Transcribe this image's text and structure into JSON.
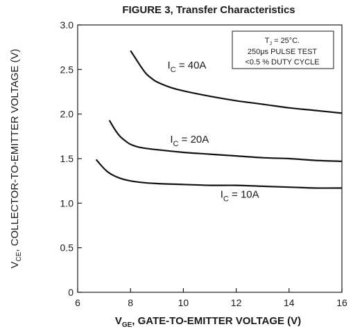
{
  "chart_data": {
    "type": "line",
    "title": "FIGURE 3,  Transfer  Characteristics",
    "xlabel": {
      "main": "V",
      "sub": "GE",
      "rest": ", GATE-TO-EMITTER VOLTAGE (V)"
    },
    "ylabel": {
      "main": "V",
      "sub": "CE",
      "rest": ", COLLECTOR-TO-EMITTER  VOLTAGE (V)"
    },
    "xlim": [
      6,
      16
    ],
    "ylim": [
      0,
      3.0
    ],
    "x_ticks": [
      6,
      8,
      10,
      12,
      14,
      16
    ],
    "x_tick_labels": [
      "6",
      "8",
      "10",
      "12",
      "14",
      "16"
    ],
    "y_ticks": [
      0,
      0.5,
      1.0,
      1.5,
      2.0,
      2.5,
      3.0
    ],
    "y_tick_labels": [
      "0",
      "0.5",
      "1.0",
      "1.5",
      "2.0",
      "2.5",
      "3.0"
    ],
    "grid": false,
    "annotation": {
      "line1_main": "T",
      "line1_sub": "J",
      "line1_rest": " = 25°C.",
      "line2": "250μs PULSE TEST",
      "line3": "<0.5 % DUTY CYCLE"
    },
    "series": [
      {
        "label_main": "I",
        "label_sub": "C",
        "label_rest": " = 40A",
        "x": [
          8.0,
          8.2,
          8.4,
          8.6,
          8.8,
          9.0,
          9.5,
          10.0,
          11.0,
          12.0,
          13.0,
          14.0,
          15.0,
          16.0
        ],
        "y": [
          2.71,
          2.62,
          2.53,
          2.45,
          2.4,
          2.36,
          2.3,
          2.26,
          2.2,
          2.15,
          2.11,
          2.07,
          2.04,
          2.01
        ]
      },
      {
        "label_main": "I",
        "label_sub": "C",
        "label_rest": " = 20A",
        "x": [
          7.2,
          7.4,
          7.6,
          7.8,
          8.0,
          8.3,
          8.7,
          9.0,
          10.0,
          11.0,
          12.0,
          13.0,
          14.0,
          15.0,
          16.0
        ],
        "y": [
          1.93,
          1.83,
          1.75,
          1.7,
          1.66,
          1.63,
          1.61,
          1.6,
          1.57,
          1.55,
          1.53,
          1.51,
          1.5,
          1.48,
          1.47
        ]
      },
      {
        "label_main": "I",
        "label_sub": "C",
        "label_rest": " = 10A",
        "x": [
          6.7,
          6.9,
          7.1,
          7.3,
          7.6,
          8.0,
          8.5,
          9.0,
          10.0,
          11.0,
          12.0,
          13.0,
          14.0,
          15.0,
          16.0
        ],
        "y": [
          1.49,
          1.42,
          1.36,
          1.32,
          1.28,
          1.25,
          1.23,
          1.22,
          1.21,
          1.2,
          1.2,
          1.19,
          1.18,
          1.17,
          1.17
        ]
      }
    ]
  }
}
